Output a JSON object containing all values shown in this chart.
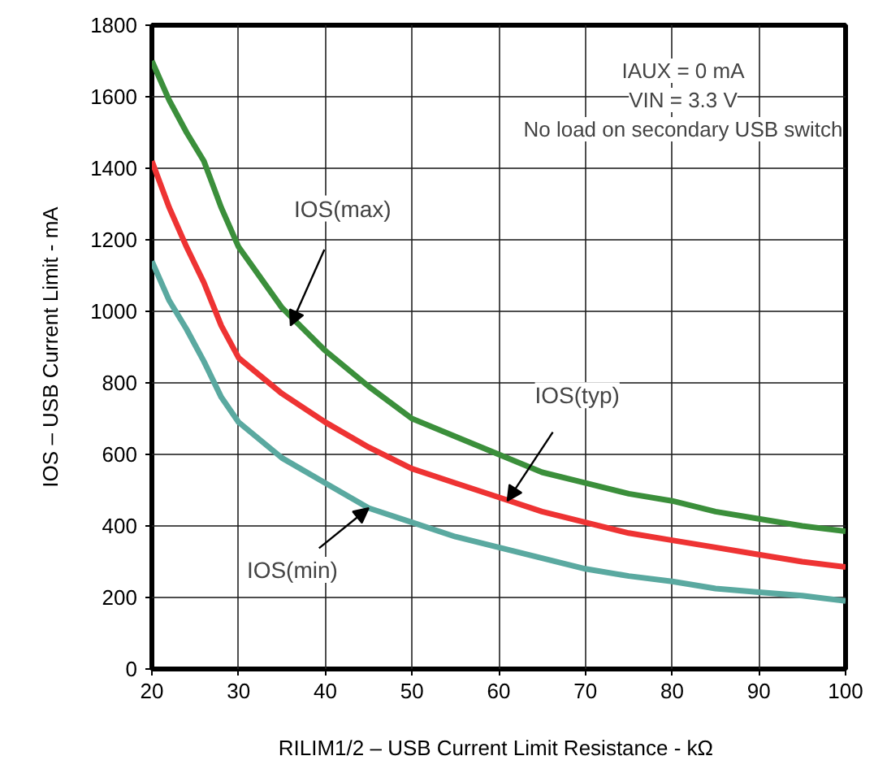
{
  "chart_data": {
    "type": "line",
    "xlabel": "RILIM1/2 – USB Current Limit Resistance  - kΩ",
    "ylabel": "IOS – USB Current Limit - mA",
    "x": [
      20,
      22,
      24,
      26,
      28,
      30,
      35,
      40,
      45,
      50,
      55,
      60,
      65,
      70,
      75,
      80,
      85,
      90,
      95,
      100
    ],
    "series": [
      {
        "color": "#3b8f3b",
        "values": [
          1700,
          1590,
          1500,
          1420,
          1290,
          1180,
          1010,
          890,
          790,
          700,
          650,
          600,
          550,
          520,
          490,
          470,
          440,
          420,
          400,
          385
        ]
      },
      {
        "color": "#ee3333",
        "values": [
          1420,
          1290,
          1180,
          1080,
          960,
          870,
          770,
          690,
          620,
          560,
          520,
          480,
          440,
          410,
          380,
          360,
          340,
          320,
          300,
          285
        ]
      },
      {
        "color": "#5aa9a0",
        "values": [
          1140,
          1030,
          950,
          860,
          760,
          690,
          590,
          520,
          450,
          410,
          370,
          340,
          310,
          280,
          260,
          245,
          225,
          215,
          205,
          190
        ]
      }
    ],
    "annotations": [
      {
        "text": "IOS(max)",
        "x": 36,
        "y": 960
      },
      {
        "text": "IOS(typ)",
        "x": 61,
        "y": 470
      },
      {
        "text": "IOS(min)",
        "x": 45,
        "y": 450
      },
      "IAUX = 0 mA",
      "VIN = 3.3 V",
      "No load on secondary USB switch"
    ],
    "xlim": [
      20,
      100
    ],
    "xticks": [
      20,
      30,
      40,
      50,
      60,
      70,
      80,
      90,
      100
    ],
    "ylim": [
      0,
      1800
    ],
    "yticks": [
      0,
      200,
      400,
      600,
      800,
      1000,
      1200,
      1400,
      1600,
      1800
    ],
    "grid": true,
    "line_style": "solid",
    "marker": "none"
  }
}
